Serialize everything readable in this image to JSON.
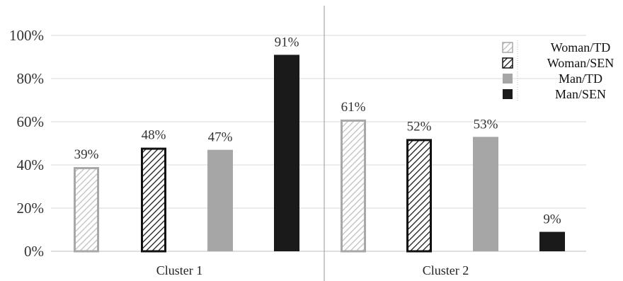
{
  "chart_data": {
    "type": "bar",
    "categories": [
      "Cluster 1",
      "Cluster 2"
    ],
    "series": [
      {
        "name": "Woman/TD",
        "values": [
          39,
          61
        ],
        "style": "hatch-light"
      },
      {
        "name": "Woman/SEN",
        "values": [
          48,
          52
        ],
        "style": "hatch-dark"
      },
      {
        "name": "Man/TD",
        "values": [
          47,
          53
        ],
        "style": "solid-gray"
      },
      {
        "name": "Man/SEN",
        "values": [
          91,
          9
        ],
        "style": "solid-black"
      }
    ],
    "value_suffix": "%",
    "ylim": [
      0,
      100
    ],
    "yticks": [
      "0%",
      "20%",
      "40%",
      "60%",
      "80%",
      "100%"
    ],
    "title": "",
    "xlabel": "",
    "ylabel": "",
    "grid": true,
    "legend_position": "top-right",
    "colors": {
      "hatch_light_stroke": "#bdbdbd",
      "hatch_light_border": "#a8a8a8",
      "hatch_dark_stroke": "#1a1a1a",
      "solid_gray": "#a6a6a6",
      "solid_black": "#1a1a1a",
      "grid": "#d9d9d9"
    }
  }
}
